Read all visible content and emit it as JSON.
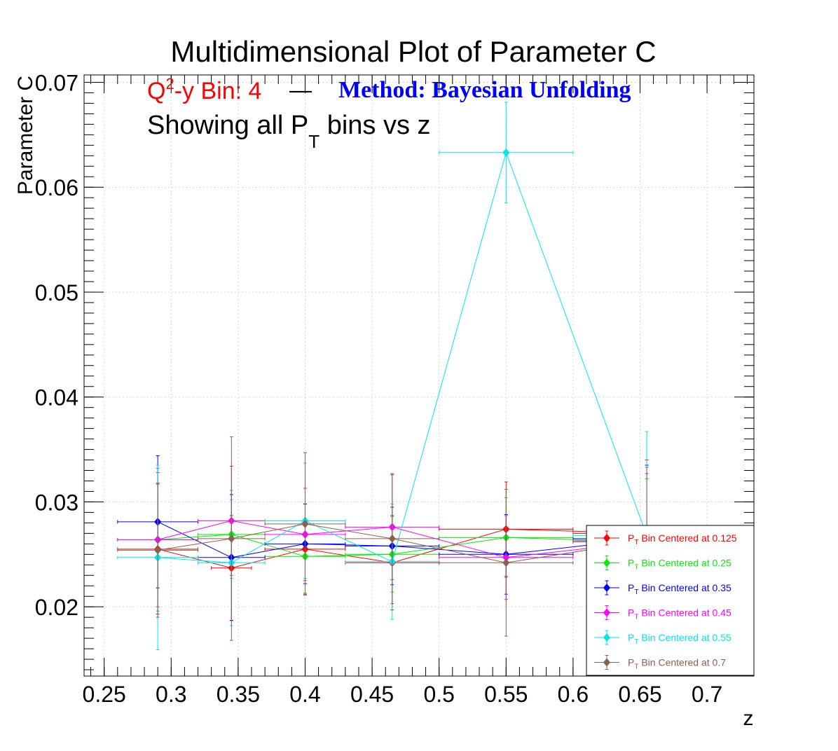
{
  "chart_data": {
    "type": "scatter",
    "title": "Multidimensional Plot of Parameter C",
    "subtitle": {
      "bin_prefix": "Q",
      "bin_sup": "2",
      "bin_text": "-y Bin: 4",
      "dash": "—",
      "method": "Method: Bayesian Unfolding",
      "show_prefix": "Showing all P",
      "show_sub": "T",
      "show_suffix": " bins vs z"
    },
    "xlabel": "z",
    "ylabel": "Parameter C",
    "xlim": [
      0.235,
      0.735
    ],
    "ylim": [
      0.0134,
      0.0707
    ],
    "xticks": [
      0.25,
      0.3,
      0.35,
      0.4,
      0.45,
      0.5,
      0.55,
      0.6,
      0.65,
      0.7
    ],
    "xtick_labels": [
      "0.25",
      "0.3",
      "0.35",
      "0.4",
      "0.45",
      "0.5",
      "0.55",
      "0.6",
      "0.65",
      "0.7"
    ],
    "yticks": [
      0.02,
      0.03,
      0.04,
      0.05,
      0.06,
      0.07
    ],
    "ytick_labels": [
      "0.02",
      "0.03",
      "0.04",
      "0.05",
      "0.06",
      "0.07"
    ],
    "grid": true,
    "legend_position": "bottom-right",
    "series": [
      {
        "label_prefix": "P",
        "label_sub": "T",
        "label_suffix": " Bin Centered at 0.125",
        "color": "#ff0000",
        "points": [
          {
            "x": 0.29,
            "y": 0.0255,
            "xerr": 0.03,
            "yerr": 0.0062
          },
          {
            "x": 0.345,
            "y": 0.0237,
            "xerr": 0.015,
            "yerr": 0.005
          },
          {
            "x": 0.4,
            "y": 0.0255,
            "xerr": 0.03,
            "yerr": 0.0043
          },
          {
            "x": 0.465,
            "y": 0.0242,
            "xerr": 0.035,
            "yerr": 0.0045
          },
          {
            "x": 0.55,
            "y": 0.0274,
            "xerr": 0.05,
            "yerr": 0.0045
          },
          {
            "x": 0.655,
            "y": 0.027,
            "xerr": 0.055,
            "yerr": 0.007
          }
        ]
      },
      {
        "label_prefix": "P",
        "label_sub": "T",
        "label_suffix": " Bin Centered at 0.25",
        "color": "#00ee00",
        "points": [
          {
            "x": 0.29,
            "y": 0.0264,
            "xerr": 0.03,
            "yerr": 0.0068
          },
          {
            "x": 0.345,
            "y": 0.0269,
            "xerr": 0.025,
            "yerr": 0.0042
          },
          {
            "x": 0.4,
            "y": 0.0248,
            "xerr": 0.03,
            "yerr": 0.0035
          },
          {
            "x": 0.465,
            "y": 0.025,
            "xerr": 0.035,
            "yerr": 0.0036
          },
          {
            "x": 0.55,
            "y": 0.0266,
            "xerr": 0.05,
            "yerr": 0.0038
          },
          {
            "x": 0.655,
            "y": 0.0262,
            "xerr": 0.055,
            "yerr": 0.006
          }
        ]
      },
      {
        "label_prefix": "P",
        "label_sub": "T",
        "label_suffix": " Bin Centered at 0.35",
        "color": "#0000ff",
        "points": [
          {
            "x": 0.29,
            "y": 0.0281,
            "xerr": 0.03,
            "yerr": 0.0063
          },
          {
            "x": 0.345,
            "y": 0.0247,
            "xerr": 0.025,
            "yerr": 0.006
          },
          {
            "x": 0.4,
            "y": 0.026,
            "xerr": 0.03,
            "yerr": 0.0038
          },
          {
            "x": 0.465,
            "y": 0.0258,
            "xerr": 0.035,
            "yerr": 0.0037
          },
          {
            "x": 0.55,
            "y": 0.025,
            "xerr": 0.05,
            "yerr": 0.0038
          },
          {
            "x": 0.655,
            "y": 0.0265,
            "xerr": 0.055,
            "yerr": 0.007
          }
        ]
      },
      {
        "label_prefix": "P",
        "label_sub": "T",
        "label_suffix": " Bin Centered at 0.45",
        "color": "#ff00ff",
        "points": [
          {
            "x": 0.29,
            "y": 0.0264,
            "xerr": 0.03,
            "yerr": 0.0064
          },
          {
            "x": 0.345,
            "y": 0.0282,
            "xerr": 0.025,
            "yerr": 0.0052
          },
          {
            "x": 0.4,
            "y": 0.0269,
            "xerr": 0.03,
            "yerr": 0.0044
          },
          {
            "x": 0.465,
            "y": 0.0276,
            "xerr": 0.035,
            "yerr": 0.005
          },
          {
            "x": 0.55,
            "y": 0.0247,
            "xerr": 0.05,
            "yerr": 0.004
          },
          {
            "x": 0.655,
            "y": 0.0262,
            "xerr": 0.055,
            "yerr": 0.0065
          }
        ]
      },
      {
        "label_prefix": "P",
        "label_sub": "T",
        "label_suffix": " Bin Centered at 0.55",
        "color": "#00e5ee",
        "points": [
          {
            "x": 0.29,
            "y": 0.0247,
            "xerr": 0.03,
            "yerr": 0.0088
          },
          {
            "x": 0.345,
            "y": 0.0242,
            "xerr": 0.025,
            "yerr": 0.006
          },
          {
            "x": 0.4,
            "y": 0.0282,
            "xerr": 0.03,
            "yerr": 0.0055
          },
          {
            "x": 0.465,
            "y": 0.0243,
            "xerr": 0.035,
            "yerr": 0.0055
          },
          {
            "x": 0.55,
            "y": 0.0633,
            "xerr": 0.05,
            "yerr": 0.0048
          },
          {
            "x": 0.655,
            "y": 0.0268,
            "xerr": 0.055,
            "yerr": 0.0099
          }
        ]
      },
      {
        "label_prefix": "P",
        "label_sub": "T",
        "label_suffix": " Bin Centered at 0.7",
        "color": "#8b6050",
        "points": [
          {
            "x": 0.29,
            "y": 0.0254,
            "xerr": 0.03,
            "yerr": 0.0064
          },
          {
            "x": 0.345,
            "y": 0.0265,
            "xerr": 0.025,
            "yerr": 0.0097
          },
          {
            "x": 0.4,
            "y": 0.0279,
            "xerr": 0.03,
            "yerr": 0.0068
          },
          {
            "x": 0.465,
            "y": 0.0265,
            "xerr": 0.035,
            "yerr": 0.0062
          },
          {
            "x": 0.55,
            "y": 0.0242,
            "xerr": 0.05,
            "yerr": 0.007
          },
          {
            "x": 0.655,
            "y": 0.0263,
            "xerr": 0.055,
            "yerr": 0.007
          }
        ]
      }
    ]
  },
  "colors": {
    "title": "#000000",
    "bin_text": "#ff0000",
    "method_text": "#0000ff",
    "grid": "#d8d8d8"
  }
}
